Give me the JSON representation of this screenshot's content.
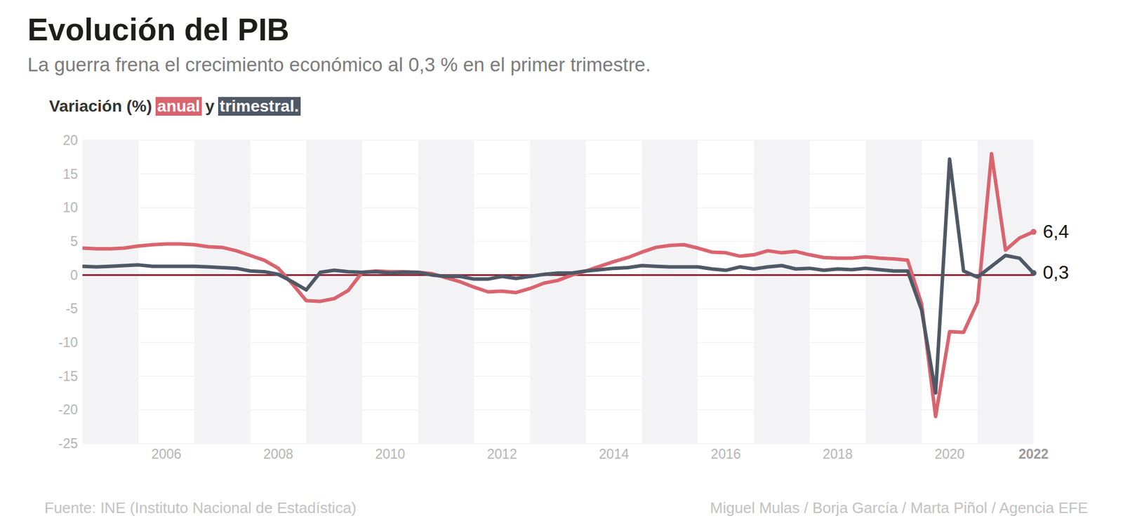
{
  "chart_data": {
    "type": "line",
    "title": "Evolución del PIB",
    "subtitle": "La guerra frena el crecimiento económico al 0,3 % en el primer trimestre.",
    "y_label": "Variación (%)",
    "conjunction": "y",
    "source": "Fuente: INE (Instituto Nacional de Estadística)",
    "credit": "Miguel Mulas / Borja García / Marta Piñol / Agencia EFE",
    "categories": [
      null,
      null,
      null,
      null,
      null,
      null,
      "2006",
      null,
      null,
      null,
      null,
      null,
      null,
      null,
      "2008",
      null,
      null,
      null,
      null,
      null,
      null,
      null,
      "2010",
      null,
      null,
      null,
      null,
      null,
      null,
      null,
      "2012",
      null,
      null,
      null,
      null,
      null,
      null,
      null,
      "2014",
      null,
      null,
      null,
      null,
      null,
      null,
      null,
      "2016",
      null,
      null,
      null,
      null,
      null,
      null,
      null,
      "2018",
      null,
      null,
      null,
      null,
      null,
      null,
      null,
      "2020",
      null,
      null,
      null,
      null,
      null,
      "2022"
    ],
    "series": [
      {
        "name": "anual",
        "color": "#d9646e",
        "values": [
          4.0,
          3.9,
          3.9,
          4.0,
          4.3,
          4.5,
          4.6,
          4.6,
          4.5,
          4.2,
          4.1,
          3.6,
          2.9,
          2.2,
          1.0,
          -1.3,
          -3.8,
          -3.9,
          -3.5,
          -2.3,
          0.4,
          0.6,
          0.5,
          0.5,
          0.4,
          0.2,
          -0.4,
          -1.0,
          -1.8,
          -2.5,
          -2.4,
          -2.6,
          -2.0,
          -1.2,
          -0.8,
          0.0,
          0.6,
          1.3,
          2.0,
          2.6,
          3.4,
          4.1,
          4.4,
          4.5,
          4.0,
          3.4,
          3.3,
          2.8,
          3.0,
          3.6,
          3.3,
          3.5,
          3.0,
          2.6,
          2.5,
          2.5,
          2.7,
          2.5,
          2.4,
          2.2,
          -4.3,
          -21.0,
          -8.4,
          -8.5,
          -4.0,
          18.0,
          3.7,
          5.5,
          6.4
        ],
        "value_labels": [
          null,
          null,
          null,
          null,
          null,
          null,
          null,
          null,
          null,
          null,
          null,
          null,
          null,
          null,
          null,
          null,
          null,
          null,
          null,
          null,
          null,
          null,
          null,
          null,
          null,
          null,
          null,
          null,
          null,
          null,
          null,
          null,
          null,
          null,
          null,
          null,
          null,
          null,
          null,
          null,
          null,
          null,
          null,
          null,
          null,
          null,
          null,
          null,
          null,
          null,
          null,
          null,
          null,
          null,
          null,
          null,
          null,
          null,
          null,
          null,
          null,
          null,
          null,
          null,
          null,
          null,
          null,
          null,
          "6,4"
        ]
      },
      {
        "name": "trimestral.",
        "color": "#4f5866",
        "values": [
          1.3,
          1.2,
          1.3,
          1.4,
          1.5,
          1.3,
          1.3,
          1.3,
          1.3,
          1.2,
          1.1,
          1.0,
          0.6,
          0.5,
          0.1,
          -1.0,
          -2.2,
          0.4,
          0.7,
          0.5,
          0.4,
          0.5,
          0.3,
          0.4,
          0.4,
          0.0,
          -0.2,
          -0.2,
          -0.6,
          -0.6,
          -0.2,
          -0.5,
          -0.2,
          0.1,
          0.3,
          0.3,
          0.6,
          0.8,
          1.0,
          1.1,
          1.4,
          1.3,
          1.2,
          1.2,
          1.2,
          0.9,
          0.7,
          1.2,
          0.9,
          1.2,
          1.4,
          0.9,
          1.0,
          0.7,
          0.9,
          0.8,
          1.0,
          0.8,
          0.6,
          0.6,
          -5.2,
          -17.5,
          17.2,
          0.6,
          -0.3,
          1.3,
          2.9,
          2.5,
          0.3
        ],
        "value_labels": [
          null,
          null,
          null,
          null,
          null,
          null,
          null,
          null,
          null,
          null,
          null,
          null,
          null,
          null,
          null,
          null,
          null,
          null,
          null,
          null,
          null,
          null,
          null,
          null,
          null,
          null,
          null,
          null,
          null,
          null,
          null,
          null,
          null,
          null,
          null,
          null,
          null,
          null,
          null,
          null,
          null,
          null,
          null,
          null,
          null,
          null,
          null,
          null,
          null,
          null,
          null,
          null,
          null,
          null,
          null,
          null,
          null,
          null,
          null,
          null,
          null,
          null,
          null,
          null,
          null,
          null,
          null,
          null,
          "0,3"
        ]
      }
    ],
    "ylim": [
      -25,
      20
    ],
    "yticks": [
      -25,
      -20,
      -15,
      -10,
      -5,
      0,
      5,
      10,
      15,
      20
    ],
    "grid": true
  }
}
